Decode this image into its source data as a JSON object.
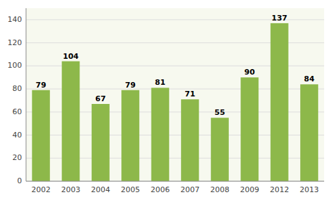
{
  "chart_data": {
    "type": "bar",
    "categories": [
      "2002",
      "2003",
      "2004",
      "2005",
      "2006",
      "2007",
      "2008",
      "2009",
      "2012",
      "2013"
    ],
    "values": [
      79,
      104,
      67,
      79,
      81,
      71,
      55,
      90,
      137,
      84
    ],
    "color": "#8DB84A",
    "ylim": [
      0,
      150
    ],
    "yticks": [
      0,
      20,
      40,
      60,
      80,
      100,
      120,
      140
    ],
    "grid": true,
    "data_labels": true
  }
}
